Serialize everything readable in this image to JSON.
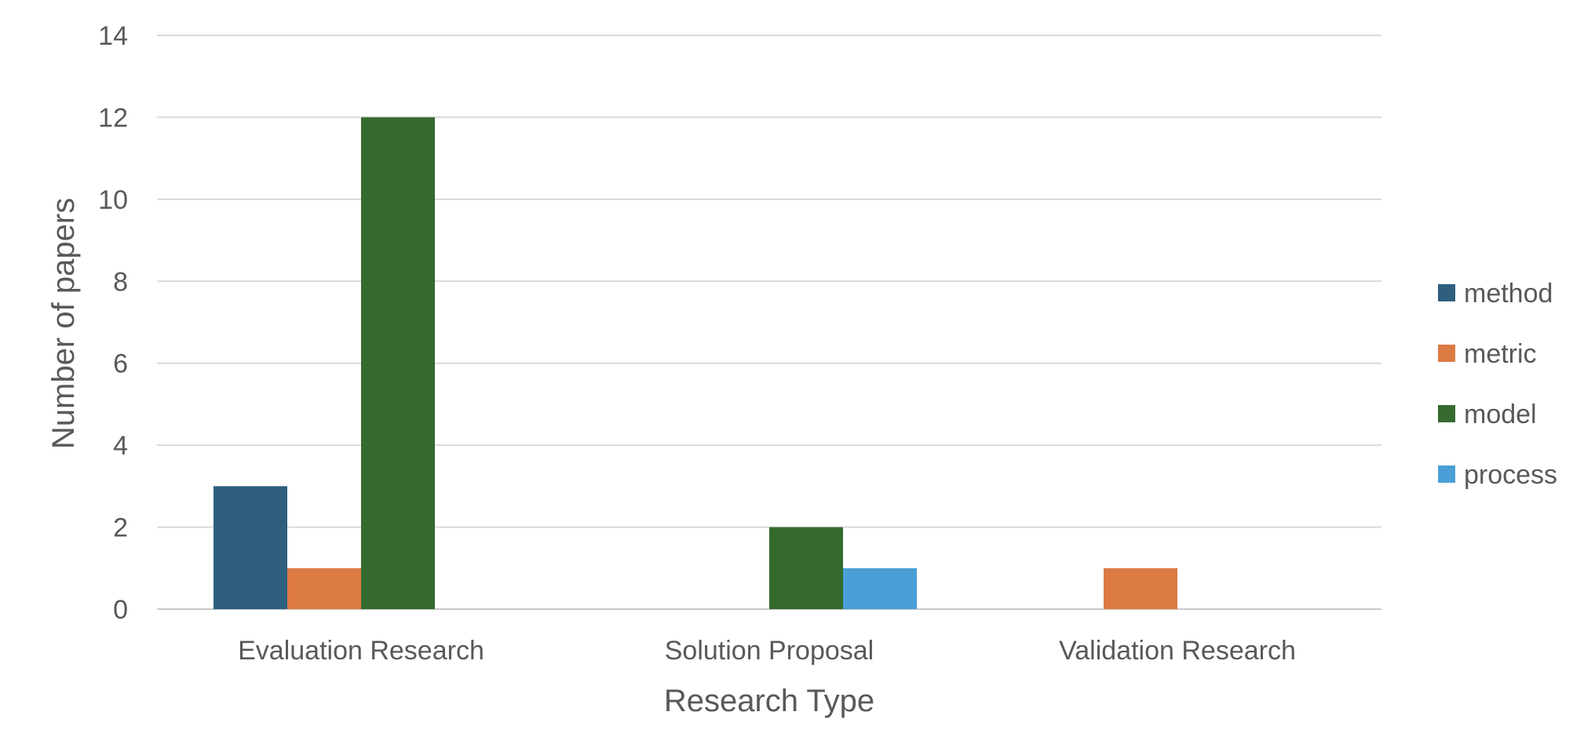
{
  "chart_data": {
    "type": "bar",
    "title": "",
    "xlabel": "Research Type",
    "ylabel": "Number of papers",
    "categories": [
      "Evaluation Research",
      "Solution Proposal",
      "Validation Research"
    ],
    "series": [
      {
        "name": "method",
        "color": "#2E5F7F",
        "values": [
          3,
          0,
          0
        ]
      },
      {
        "name": "metric",
        "color": "#DB7A43",
        "values": [
          1,
          0,
          1
        ]
      },
      {
        "name": "model",
        "color": "#356A2E",
        "values": [
          12,
          2,
          0
        ]
      },
      {
        "name": "process",
        "color": "#4A9FD6",
        "values": [
          0,
          1,
          0
        ]
      }
    ],
    "yticks": [
      0,
      2,
      4,
      6,
      8,
      10,
      12,
      14
    ],
    "ylim": [
      0,
      14
    ],
    "grid": true,
    "legend": "right"
  }
}
